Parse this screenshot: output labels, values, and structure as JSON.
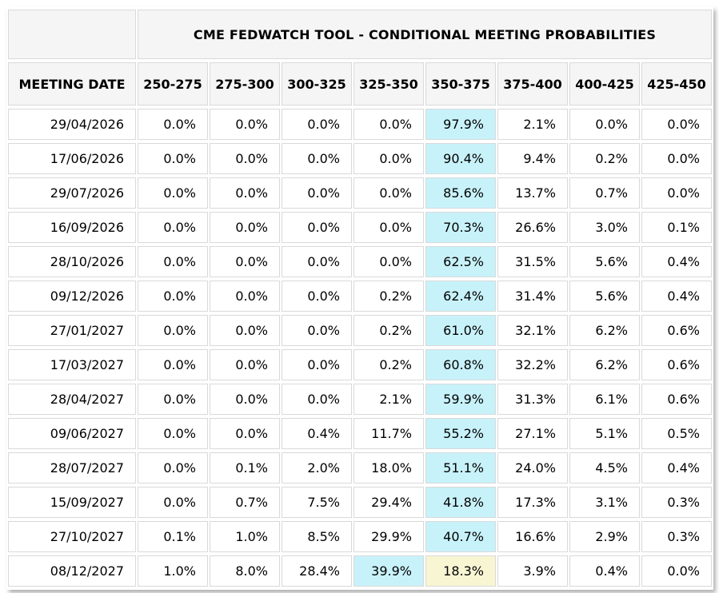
{
  "chart_data": {
    "type": "table",
    "title": "CME FEDWATCH TOOL - CONDITIONAL MEETING PROBABILITIES",
    "columns": [
      "MEETING DATE",
      "250-275",
      "275-300",
      "300-325",
      "325-350",
      "350-375",
      "375-400",
      "400-425",
      "425-450"
    ],
    "rows": [
      {
        "date": "29/04/2026",
        "values": [
          "0.0%",
          "0.0%",
          "0.0%",
          "0.0%",
          "97.9%",
          "2.1%",
          "0.0%",
          "0.0%"
        ],
        "highlights": [
          "",
          "",
          "",
          "",
          "cyan",
          "",
          "",
          ""
        ]
      },
      {
        "date": "17/06/2026",
        "values": [
          "0.0%",
          "0.0%",
          "0.0%",
          "0.0%",
          "90.4%",
          "9.4%",
          "0.2%",
          "0.0%"
        ],
        "highlights": [
          "",
          "",
          "",
          "",
          "cyan",
          "",
          "",
          ""
        ]
      },
      {
        "date": "29/07/2026",
        "values": [
          "0.0%",
          "0.0%",
          "0.0%",
          "0.0%",
          "85.6%",
          "13.7%",
          "0.7%",
          "0.0%"
        ],
        "highlights": [
          "",
          "",
          "",
          "",
          "cyan",
          "",
          "",
          ""
        ]
      },
      {
        "date": "16/09/2026",
        "values": [
          "0.0%",
          "0.0%",
          "0.0%",
          "0.0%",
          "70.3%",
          "26.6%",
          "3.0%",
          "0.1%"
        ],
        "highlights": [
          "",
          "",
          "",
          "",
          "cyan",
          "",
          "",
          ""
        ]
      },
      {
        "date": "28/10/2026",
        "values": [
          "0.0%",
          "0.0%",
          "0.0%",
          "0.0%",
          "62.5%",
          "31.5%",
          "5.6%",
          "0.4%"
        ],
        "highlights": [
          "",
          "",
          "",
          "",
          "cyan",
          "",
          "",
          ""
        ]
      },
      {
        "date": "09/12/2026",
        "values": [
          "0.0%",
          "0.0%",
          "0.0%",
          "0.2%",
          "62.4%",
          "31.4%",
          "5.6%",
          "0.4%"
        ],
        "highlights": [
          "",
          "",
          "",
          "",
          "cyan",
          "",
          "",
          ""
        ]
      },
      {
        "date": "27/01/2027",
        "values": [
          "0.0%",
          "0.0%",
          "0.0%",
          "0.2%",
          "61.0%",
          "32.1%",
          "6.2%",
          "0.6%"
        ],
        "highlights": [
          "",
          "",
          "",
          "",
          "cyan",
          "",
          "",
          ""
        ]
      },
      {
        "date": "17/03/2027",
        "values": [
          "0.0%",
          "0.0%",
          "0.0%",
          "0.2%",
          "60.8%",
          "32.2%",
          "6.2%",
          "0.6%"
        ],
        "highlights": [
          "",
          "",
          "",
          "",
          "cyan",
          "",
          "",
          ""
        ]
      },
      {
        "date": "28/04/2027",
        "values": [
          "0.0%",
          "0.0%",
          "0.0%",
          "2.1%",
          "59.9%",
          "31.3%",
          "6.1%",
          "0.6%"
        ],
        "highlights": [
          "",
          "",
          "",
          "",
          "cyan",
          "",
          "",
          ""
        ]
      },
      {
        "date": "09/06/2027",
        "values": [
          "0.0%",
          "0.0%",
          "0.4%",
          "11.7%",
          "55.2%",
          "27.1%",
          "5.1%",
          "0.5%"
        ],
        "highlights": [
          "",
          "",
          "",
          "",
          "cyan",
          "",
          "",
          ""
        ]
      },
      {
        "date": "28/07/2027",
        "values": [
          "0.0%",
          "0.1%",
          "2.0%",
          "18.0%",
          "51.1%",
          "24.0%",
          "4.5%",
          "0.4%"
        ],
        "highlights": [
          "",
          "",
          "",
          "",
          "cyan",
          "",
          "",
          ""
        ]
      },
      {
        "date": "15/09/2027",
        "values": [
          "0.0%",
          "0.7%",
          "7.5%",
          "29.4%",
          "41.8%",
          "17.3%",
          "3.1%",
          "0.3%"
        ],
        "highlights": [
          "",
          "",
          "",
          "",
          "cyan",
          "",
          "",
          ""
        ]
      },
      {
        "date": "27/10/2027",
        "values": [
          "0.1%",
          "1.0%",
          "8.5%",
          "29.9%",
          "40.7%",
          "16.6%",
          "2.9%",
          "0.3%"
        ],
        "highlights": [
          "",
          "",
          "",
          "",
          "cyan",
          "",
          "",
          ""
        ]
      },
      {
        "date": "08/12/2027",
        "values": [
          "1.0%",
          "8.0%",
          "28.4%",
          "39.9%",
          "18.3%",
          "3.9%",
          "0.4%",
          "0.0%"
        ],
        "highlights": [
          "",
          "",
          "",
          "cyan",
          "yellow",
          "",
          "",
          ""
        ]
      }
    ],
    "colors": {
      "highlight_cyan": "#c8f2fa",
      "highlight_yellow": "#f8f5d3",
      "header_bg": "#f5f5f5",
      "cell_bg": "#ffffff",
      "border": "#d9d9d9",
      "text": "#000000"
    },
    "layout": {
      "legend": "none",
      "grid": true,
      "highlight_meaning": "highest probability per row"
    }
  }
}
